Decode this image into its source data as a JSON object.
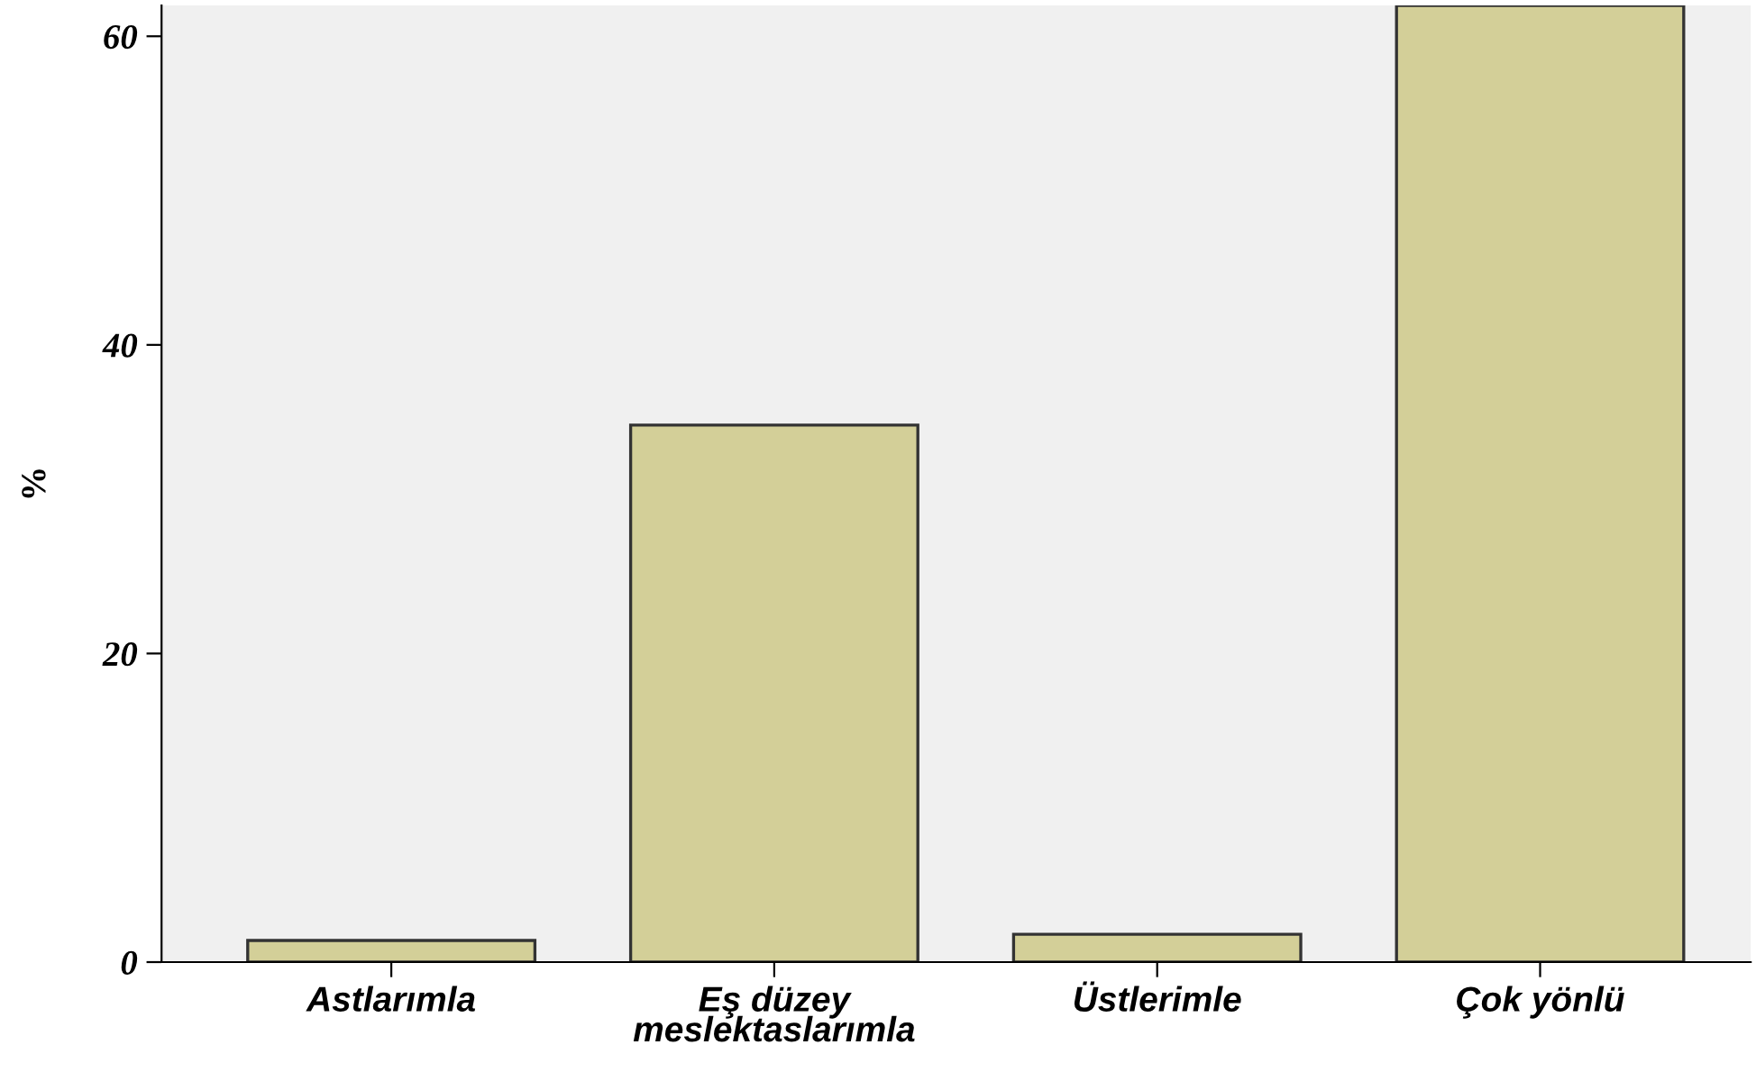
{
  "chart_data": {
    "type": "bar",
    "ylabel": "%",
    "categories": [
      "Astlarımla",
      "Eş düzey\nmeslektaslarımla",
      "Üstlerimle",
      "Çok yönlü"
    ],
    "values": [
      1.4,
      34.8,
      1.8,
      62
    ],
    "color": "#d3cf98",
    "ylim": [
      0,
      62
    ],
    "yticks": [
      0,
      20,
      40,
      60
    ],
    "grid": false
  }
}
